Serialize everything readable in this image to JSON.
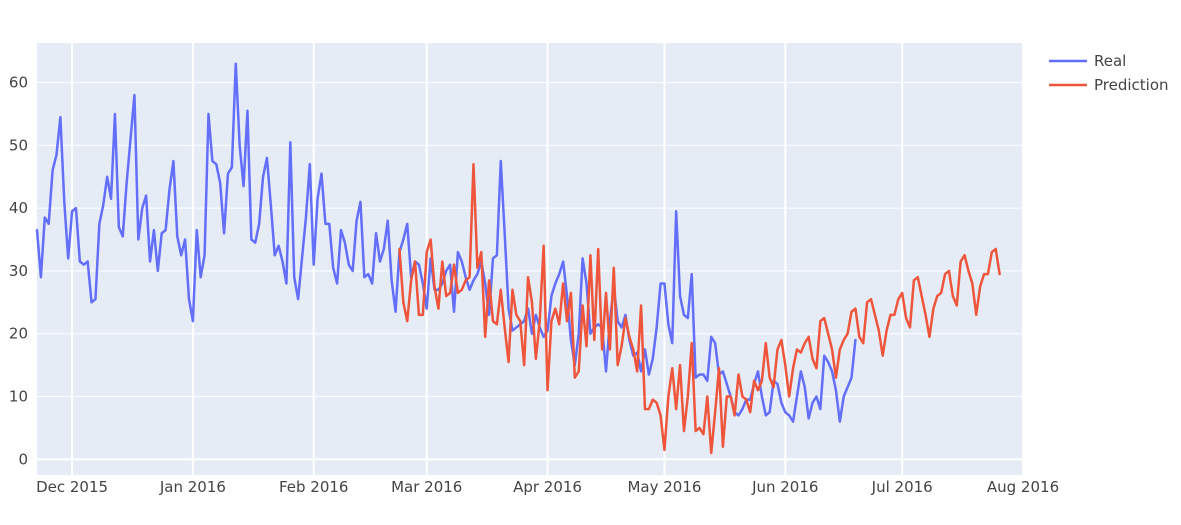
{
  "chart_data": {
    "type": "line",
    "title": "",
    "xlabel": "",
    "ylabel": "",
    "ylim": [
      -2.5,
      66.3
    ],
    "yticks": [
      0,
      10,
      20,
      30,
      40,
      50,
      60
    ],
    "xrange": [
      "2015-11-22",
      "2016-08-01"
    ],
    "xticks": [
      {
        "date": "2015-12-01",
        "label": "Dec 2015"
      },
      {
        "date": "2016-01-01",
        "label": "Jan 2016"
      },
      {
        "date": "2016-02-01",
        "label": "Feb 2016"
      },
      {
        "date": "2016-03-01",
        "label": "Mar 2016"
      },
      {
        "date": "2016-04-01",
        "label": "Apr 2016"
      },
      {
        "date": "2016-05-01",
        "label": "May 2016"
      },
      {
        "date": "2016-06-01",
        "label": "Jun 2016"
      },
      {
        "date": "2016-07-01",
        "label": "Jul 2016"
      },
      {
        "date": "2016-08-01",
        "label": "Aug 2016"
      }
    ],
    "grid": true,
    "legend_position": "top-right",
    "series": [
      {
        "name": "Real",
        "color": "#636efa",
        "start": "2015-11-22",
        "values": [
          36.5,
          29,
          38.5,
          37.5,
          46,
          48.5,
          54.5,
          41,
          32,
          39.5,
          40,
          31.5,
          31,
          31.5,
          25,
          25.5,
          37.5,
          40.5,
          45,
          41.5,
          55,
          37,
          35.5,
          44,
          51,
          58,
          35,
          40,
          42,
          31.5,
          36.5,
          30,
          36,
          36.5,
          43,
          47.5,
          35.5,
          32.5,
          35,
          25.5,
          22,
          36.5,
          29,
          32.5,
          55,
          47.5,
          47,
          44,
          36,
          45.5,
          46.5,
          63,
          50,
          43.5,
          55.5,
          35,
          34.5,
          37.5,
          45,
          48,
          40.5,
          32.5,
          34,
          31.5,
          28,
          50.5,
          29,
          25.5,
          32,
          38.5,
          47,
          31,
          41.5,
          45.5,
          37.5,
          37.5,
          30.5,
          28,
          36.5,
          34.5,
          31,
          30,
          38,
          41,
          29,
          29.5,
          28,
          36,
          31.5,
          33.5,
          38,
          28.5,
          23.5,
          33,
          35,
          37.5,
          29,
          31.5,
          31,
          28,
          24,
          32,
          27,
          27,
          28,
          30,
          31,
          23.5,
          33,
          31.5,
          29,
          27,
          28.5,
          29.5,
          31.5,
          28,
          23,
          32,
          32.5,
          47.5,
          36,
          24,
          20.5,
          21,
          21.5,
          22,
          24,
          20,
          23,
          21,
          19.5,
          20.5,
          26,
          28,
          29.5,
          31.5,
          26,
          19,
          15,
          20,
          32,
          28,
          20,
          21,
          21.5,
          21,
          14,
          22,
          27.5,
          22,
          21,
          23,
          19,
          16.5,
          17,
          14,
          17.5,
          13.5,
          16,
          21,
          28,
          28,
          21.5,
          18.5,
          39.5,
          26,
          23,
          22.5,
          29.5,
          13,
          13.5,
          13.5,
          12.5,
          19.5,
          18.5,
          13.5,
          14,
          12,
          10,
          7.5,
          7,
          8,
          9.5,
          9.5,
          12,
          14,
          10,
          7,
          7.5,
          12.5,
          12,
          9,
          7.5,
          7,
          6,
          10,
          14,
          11.5,
          6.5,
          9,
          10,
          8,
          16.5,
          15.5,
          14,
          11,
          6,
          10,
          11.5,
          13,
          19
        ],
        "stroke_width": 2.5
      },
      {
        "name": "Prediction",
        "color": "#ef553b",
        "start": "2016-02-23",
        "values": [
          33.5,
          25,
          22,
          28.5,
          31.5,
          23,
          23,
          33,
          35,
          27.5,
          24,
          31.5,
          26,
          26.5,
          31,
          26.5,
          27,
          28.5,
          29,
          47,
          30.5,
          33,
          19.5,
          28.5,
          22,
          21.5,
          27,
          21,
          15.5,
          27,
          23,
          22,
          15,
          29,
          25,
          16,
          22,
          34,
          11,
          22,
          24,
          21.5,
          28,
          22,
          26.5,
          13,
          14,
          24.5,
          18,
          32.5,
          19,
          33.5,
          17.5,
          26.5,
          17.5,
          30.5,
          15,
          18,
          22.5,
          19.5,
          17.5,
          14,
          24.5,
          8,
          8,
          9.5,
          9,
          7,
          1.5,
          10,
          14.5,
          8,
          15,
          4.5,
          10,
          18.5,
          4.5,
          5,
          4,
          10,
          1,
          7.5,
          14.5,
          2,
          10,
          10,
          7,
          13.5,
          10,
          9.5,
          7.5,
          12.5,
          11,
          12.5,
          18.5,
          13,
          11.5,
          17.5,
          19,
          15,
          10,
          14.5,
          17.5,
          17,
          18.5,
          19.5,
          16,
          14.5,
          22,
          22.5,
          20,
          17.5,
          13,
          17.5,
          19,
          20,
          23.5,
          24,
          19.5,
          18.5,
          25,
          25.5,
          23,
          20.5,
          16.5,
          20.5,
          23,
          23,
          25.5,
          26.5,
          22.5,
          21,
          28.5,
          29,
          26,
          23,
          19.5,
          24,
          26,
          26.5,
          29.5,
          30,
          26,
          24.5,
          31.5,
          32.5,
          30,
          28,
          23,
          27.5,
          29.5,
          29.5,
          33,
          33.5,
          29.5
        ],
        "stroke_width": 2.5
      }
    ]
  }
}
